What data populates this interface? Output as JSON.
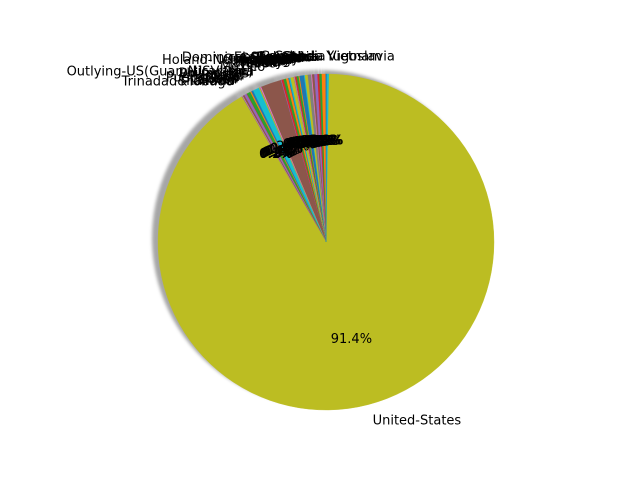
{
  "chart_data": {
    "type": "pie",
    "title": "",
    "startangle": 90,
    "shadow": true,
    "autopct": "%1.1f%%",
    "colors": [
      "#1f77b4",
      "#ff7f0e",
      "#2ca02c",
      "#d62728",
      "#9467bd",
      "#8c564b",
      "#e377c2",
      "#7f7f7f",
      "#bcbd22",
      "#17becf"
    ],
    "slices": [
      {
        "label": "Cambodia",
        "value": 19
      },
      {
        "label": "Canada",
        "value": 121
      },
      {
        "label": "China",
        "value": 75
      },
      {
        "label": "Columbia",
        "value": 59
      },
      {
        "label": "Cuba",
        "value": 95
      },
      {
        "label": "Dominican-Republic",
        "value": 70
      },
      {
        "label": "Ecuador",
        "value": 28
      },
      {
        "label": "El-Salvador",
        "value": 106
      },
      {
        "label": "England",
        "value": 90
      },
      {
        "label": "France",
        "value": 29
      },
      {
        "label": "Germany",
        "value": 137
      },
      {
        "label": "Greece",
        "value": 29
      },
      {
        "label": "Guatemala",
        "value": 64
      },
      {
        "label": "Haiti",
        "value": 44
      },
      {
        "label": "Holand-Netherlands",
        "value": 1
      },
      {
        "label": "Honduras",
        "value": 13
      },
      {
        "label": "Hong",
        "value": 20
      },
      {
        "label": "Hungary",
        "value": 13
      },
      {
        "label": "India",
        "value": 100
      },
      {
        "label": "Iran",
        "value": 43
      },
      {
        "label": "Ireland",
        "value": 24
      },
      {
        "label": "Italy",
        "value": 73
      },
      {
        "label": "Jamaica",
        "value": 81
      },
      {
        "label": "Japan",
        "value": 62
      },
      {
        "label": "Laos",
        "value": 18
      },
      {
        "label": "Mexico",
        "value": 643
      },
      {
        "label": "Nicaragua",
        "value": 34
      },
      {
        "label": "Outlying-US(Guam-USVI-etc)",
        "value": 14
      },
      {
        "label": "Peru",
        "value": 31
      },
      {
        "label": "Philippines",
        "value": 198
      },
      {
        "label": "Poland",
        "value": 60
      },
      {
        "label": "Portugal",
        "value": 37
      },
      {
        "label": "Puerto-Rico",
        "value": 114
      },
      {
        "label": "Scotland",
        "value": 12
      },
      {
        "label": "South",
        "value": 80
      },
      {
        "label": "Taiwan",
        "value": 51
      },
      {
        "label": "Thailand",
        "value": 18
      },
      {
        "label": "Trinadad&Tobago",
        "value": 19
      },
      {
        "label": "United-States",
        "value": 29753
      },
      {
        "label": "Vietnam",
        "value": 67
      },
      {
        "label": "Yugoslavia",
        "value": 16
      }
    ]
  }
}
